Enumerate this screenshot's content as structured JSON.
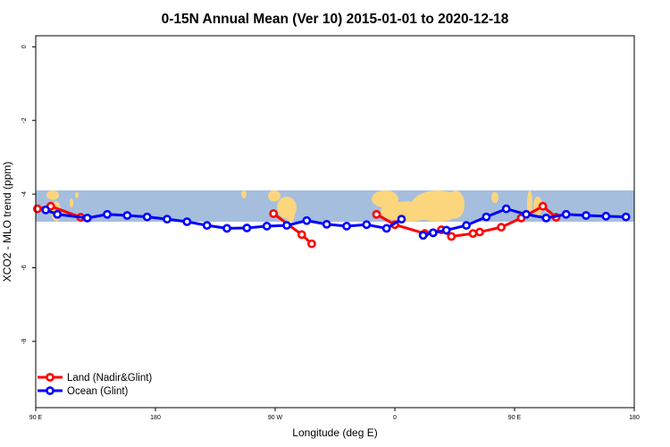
{
  "chart_data": {
    "type": "line",
    "title": "0-15N Annual Mean (Ver 10)   2015-01-01 to 2020-12-18",
    "xlabel": "Longitude (deg E)",
    "ylabel": "XCO2 - MLO trend (ppm)",
    "xlim": [
      90,
      450
    ],
    "ylim": [
      -9.8,
      0.3
    ],
    "x_ticks": [
      {
        "value": 90,
        "label": "90 E"
      },
      {
        "value": 162,
        "label": "180"
      },
      {
        "value": 234,
        "label": "90 W"
      },
      {
        "value": 306,
        "label": "0"
      },
      {
        "value": 378,
        "label": "90 E"
      },
      {
        "value": 450,
        "label": "180"
      }
    ],
    "y_ticks": [
      {
        "value": 0,
        "label": "0"
      },
      {
        "value": -2,
        "label": "-2"
      },
      {
        "value": -4,
        "label": "-4"
      },
      {
        "value": -6,
        "label": "-6"
      },
      {
        "value": -8,
        "label": "-8"
      }
    ],
    "grid": false,
    "legend_position": "bottom-left",
    "background_map_band": {
      "ymin": -4.75,
      "ymax": -3.9,
      "ocean_color": "#a5bede",
      "land_color": "#fcd67d"
    },
    "series": [
      {
        "name": "Land (Nadir&Glint)",
        "color": "#ff0000",
        "segments": [
          {
            "x": [
              91,
              99,
              117
            ],
            "y": [
              -4.4,
              -4.33,
              -4.63
            ]
          },
          {
            "x": [
              233,
              250,
              256
            ],
            "y": [
              -4.53,
              -5.1,
              -5.35
            ]
          },
          {
            "x": [
              295,
              306,
              324,
              329,
              334,
              340,
              353,
              357,
              370,
              382,
              395,
              403
            ],
            "y": [
              -4.55,
              -4.83,
              -5.07,
              -5.05,
              -4.97,
              -5.15,
              -5.07,
              -5.03,
              -4.9,
              -4.65,
              -4.33,
              -4.63
            ]
          }
        ]
      },
      {
        "name": "Ocean (Glint)",
        "color": "#0000ff",
        "segments": [
          {
            "x": [
              96,
              103,
              121,
              133,
              145,
              157,
              169,
              181,
              193,
              205,
              217,
              229,
              241,
              253,
              265,
              277,
              289,
              301,
              310
            ],
            "y": [
              -4.43,
              -4.55,
              -4.65,
              -4.55,
              -4.58,
              -4.62,
              -4.68,
              -4.75,
              -4.85,
              -4.93,
              -4.92,
              -4.87,
              -4.85,
              -4.72,
              -4.82,
              -4.87,
              -4.83,
              -4.93,
              -4.68
            ]
          },
          {
            "x": [
              323,
              329,
              337,
              349,
              361,
              373,
              385,
              397,
              409,
              421,
              433,
              445
            ],
            "y": [
              -5.12,
              -5.05,
              -4.98,
              -4.85,
              -4.62,
              -4.4,
              -4.55,
              -4.65,
              -4.55,
              -4.58,
              -4.6,
              -4.62
            ]
          }
        ]
      }
    ]
  }
}
